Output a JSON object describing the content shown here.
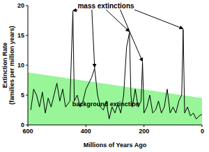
{
  "chart_data": {
    "type": "line",
    "xlabel": "Millions of Years Ago",
    "ylabel": [
      "Extinction Rate",
      "(families per million years)"
    ],
    "xlim": [
      600,
      0
    ],
    "xticks": [
      600,
      400,
      200,
      0
    ],
    "ylim": [
      0,
      20
    ],
    "yticks": [
      0,
      5,
      10,
      15,
      20
    ],
    "series": [
      {
        "name": "background extinction",
        "type": "area",
        "color": "#98f598",
        "x": [
          600,
          0
        ],
        "values": [
          8.8,
          4.5
        ]
      },
      {
        "type": "line",
        "color": "#000000",
        "x": [
          590,
          580,
          570,
          560,
          550,
          540,
          530,
          520,
          510,
          500,
          490,
          480,
          470,
          455,
          445,
          440,
          430,
          420,
          410,
          400,
          390,
          380,
          370,
          360,
          350,
          340,
          330,
          320,
          310,
          300,
          290,
          280,
          270,
          260,
          250,
          245,
          240,
          230,
          220,
          210,
          205,
          200,
          190,
          180,
          170,
          160,
          150,
          140,
          130,
          120,
          110,
          100,
          90,
          80,
          70,
          65,
          60,
          50,
          40,
          30,
          20,
          10,
          0
        ],
        "values": [
          2.5,
          6,
          5,
          3,
          5.5,
          2,
          4.5,
          3,
          5,
          7,
          4,
          6,
          3,
          4,
          19,
          4,
          5,
          3,
          4,
          6,
          7,
          8,
          9.5,
          5,
          3,
          2.5,
          4,
          1,
          3,
          2,
          3.5,
          2,
          5,
          13,
          15.5,
          5,
          3,
          6,
          3,
          4,
          10.5,
          2,
          3,
          5,
          2,
          2.5,
          4,
          2,
          3,
          6,
          2,
          3,
          2,
          4,
          5,
          16,
          2,
          3,
          1.5,
          2,
          1,
          1.5,
          1.8
        ]
      }
    ],
    "annotations": [
      {
        "text": "mass extinctions",
        "x": [
          445,
          370,
          250,
          205,
          65
        ]
      }
    ]
  }
}
